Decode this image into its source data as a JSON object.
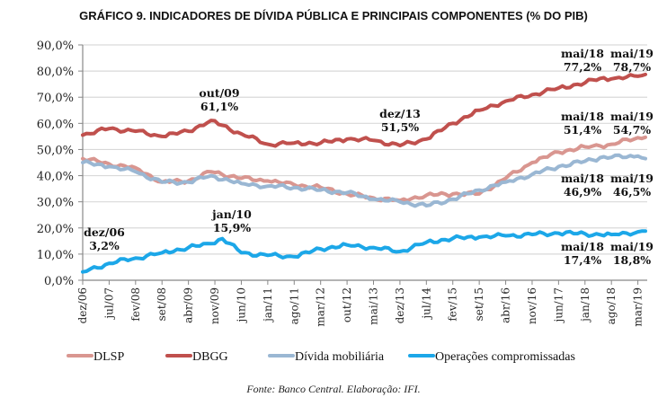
{
  "chart_data": {
    "type": "line",
    "title": "GRÁFICO 9. INDICADORES DE DÍVIDA PÚBLICA E PRINCIPAIS COMPONENTES (% DO PIB)",
    "xlabel": "",
    "ylabel": "",
    "ylim": [
      0,
      90
    ],
    "yticks": [
      "0,0%",
      "10,0%",
      "20,0%",
      "30,0%",
      "40,0%",
      "50,0%",
      "60,0%",
      "70,0%",
      "80,0%",
      "90,0%"
    ],
    "xticks": [
      "dez/06",
      "jul/07",
      "fev/08",
      "set/08",
      "abr/09",
      "nov/09",
      "jun/10",
      "jan/11",
      "ago/11",
      "mar/12",
      "out/12",
      "mai/13",
      "dez/13",
      "jul/14",
      "fev/15",
      "set/15",
      "abr/16",
      "nov/16",
      "jun/17",
      "jan/18",
      "ago/18",
      "mar/19"
    ],
    "x_range": [
      "dez/06",
      "mai/19"
    ],
    "grid": true,
    "legend_position": "bottom",
    "series": [
      {
        "name": "DLSP",
        "color": "#d99690",
        "x": [
          "dez/06",
          "jul/07",
          "fev/08",
          "set/08",
          "abr/09",
          "out/09",
          "jun/10",
          "jan/11",
          "ago/11",
          "mar/12",
          "out/12",
          "mai/13",
          "dez/13",
          "jul/14",
          "fev/15",
          "set/15",
          "abr/16",
          "nov/16",
          "jun/17",
          "jan/18",
          "mai/18",
          "ago/18",
          "mar/19",
          "mai/19"
        ],
        "values": [
          46.5,
          44.5,
          43.0,
          37.5,
          38.0,
          41.5,
          39.0,
          38.0,
          36.5,
          35.5,
          33.0,
          31.5,
          30.5,
          32.5,
          33.0,
          33.0,
          39.0,
          45.0,
          49.0,
          51.0,
          51.4,
          52.0,
          54.5,
          54.7
        ]
      },
      {
        "name": "DBGG",
        "color": "#c0504d",
        "x": [
          "dez/06",
          "jul/07",
          "fev/08",
          "set/08",
          "abr/09",
          "out/09",
          "jun/10",
          "jan/11",
          "ago/11",
          "mar/12",
          "out/12",
          "mai/13",
          "dez/13",
          "jul/14",
          "fev/15",
          "set/15",
          "abr/16",
          "nov/16",
          "jun/17",
          "jan/18",
          "mai/18",
          "ago/18",
          "mar/19",
          "mai/19"
        ],
        "values": [
          55.5,
          58.0,
          57.0,
          55.0,
          57.0,
          61.1,
          56.0,
          52.0,
          52.5,
          52.5,
          54.0,
          53.5,
          51.5,
          54.0,
          60.0,
          65.0,
          68.5,
          71.0,
          73.5,
          75.5,
          77.2,
          77.0,
          78.0,
          78.7
        ]
      },
      {
        "name": "Dívida mobiliária",
        "color": "#9ab7d3",
        "x": [
          "dez/06",
          "jul/07",
          "fev/08",
          "set/08",
          "abr/09",
          "out/09",
          "jun/10",
          "jan/11",
          "ago/11",
          "mar/12",
          "out/12",
          "mai/13",
          "dez/13",
          "jul/14",
          "fev/15",
          "set/15",
          "abr/16",
          "nov/16",
          "jun/17",
          "jan/18",
          "mai/18",
          "ago/18",
          "mar/19",
          "mai/19"
        ],
        "values": [
          45.0,
          43.5,
          41.5,
          37.5,
          37.5,
          40.0,
          37.0,
          36.0,
          35.5,
          34.5,
          33.5,
          31.0,
          30.0,
          28.5,
          31.0,
          34.5,
          37.5,
          40.5,
          43.5,
          45.5,
          46.9,
          47.0,
          47.5,
          46.5
        ]
      },
      {
        "name": "Operações compromissadas",
        "color": "#1ca7e8",
        "x": [
          "dez/06",
          "jul/07",
          "fev/08",
          "set/08",
          "abr/09",
          "out/09",
          "jan/10",
          "jun/10",
          "jan/11",
          "ago/11",
          "mar/12",
          "out/12",
          "mai/13",
          "dez/13",
          "jul/14",
          "fev/15",
          "set/15",
          "abr/16",
          "nov/16",
          "jun/17",
          "jan/18",
          "mai/18",
          "ago/18",
          "mar/19",
          "mai/19"
        ],
        "values": [
          3.2,
          6.5,
          8.5,
          10.5,
          12.5,
          14.0,
          15.9,
          10.5,
          9.5,
          9.0,
          12.0,
          13.5,
          12.5,
          11.0,
          14.5,
          16.0,
          16.5,
          17.0,
          17.5,
          18.0,
          17.8,
          17.4,
          17.5,
          18.5,
          18.8
        ]
      }
    ],
    "annotations": [
      {
        "label": "out/09",
        "value": "61,1%",
        "series": "DBGG"
      },
      {
        "label": "dez/13",
        "value": "51,5%",
        "series": "DBGG"
      },
      {
        "label": "mai/18",
        "value": "77,2%",
        "series": "DBGG"
      },
      {
        "label": "mai/19",
        "value": "78,7%",
        "series": "DBGG"
      },
      {
        "label": "mai/18",
        "value": "51,4%",
        "series": "DLSP"
      },
      {
        "label": "mai/19",
        "value": "54,7%",
        "series": "DLSP"
      },
      {
        "label": "mai/18",
        "value": "46,9%",
        "series": "Dívida mobiliária"
      },
      {
        "label": "mai/19",
        "value": "46,5%",
        "series": "Dívida mobiliária"
      },
      {
        "label": "dez/06",
        "value": "3,2%",
        "series": "Operações compromissadas"
      },
      {
        "label": "jan/10",
        "value": "15,9%",
        "series": "Operações compromissadas"
      },
      {
        "label": "mai/18",
        "value": "17,4%",
        "series": "Operações compromissadas"
      },
      {
        "label": "mai/19",
        "value": "18,8%",
        "series": "Operações compromissadas"
      }
    ],
    "source": "Fonte: Banco Central. Elaboração: IFI."
  }
}
